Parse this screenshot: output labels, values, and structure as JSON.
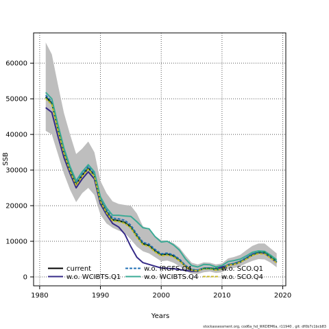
{
  "chart_data": {
    "type": "line",
    "xlabel": "Years",
    "ylabel": "SSB",
    "xlim": [
      1979,
      2020.5
    ],
    "ylim": [
      -2500,
      68500
    ],
    "xticks": [
      1980,
      1990,
      2000,
      2010,
      2020
    ],
    "yticks": [
      0,
      10000,
      20000,
      30000,
      40000,
      50000,
      60000
    ],
    "grid": true,
    "legend_position": "bottom-left",
    "x": [
      1981,
      1982,
      1983,
      1984,
      1985,
      1986,
      1987,
      1988,
      1989,
      1990,
      1991,
      1992,
      1993,
      1994,
      1995,
      1996,
      1997,
      1998,
      1999,
      2000,
      2001,
      2002,
      2003,
      2004,
      2005,
      2006,
      2007,
      2008,
      2009,
      2010,
      2011,
      2012,
      2013,
      2014,
      2015,
      2016,
      2017,
      2018,
      2019
    ],
    "confidence_band": {
      "color": "#bebebe",
      "upper": [
        65800,
        62500,
        54000,
        46000,
        40000,
        34500,
        36000,
        38000,
        35000,
        27000,
        23500,
        21200,
        20500,
        20200,
        20000,
        17800,
        14200,
        13500,
        11500,
        10300,
        10200,
        9500,
        8200,
        6000,
        4000,
        3500,
        4100,
        4000,
        3500,
        3800,
        5200,
        5600,
        6200,
        7500,
        8700,
        9400,
        9400,
        8000,
        6600
      ],
      "lower": [
        41000,
        40000,
        34500,
        29000,
        24500,
        21000,
        23500,
        25000,
        23000,
        17500,
        15000,
        13800,
        13000,
        12300,
        10500,
        8500,
        7200,
        6600,
        5500,
        4400,
        4600,
        4000,
        3000,
        1700,
        900,
        800,
        1300,
        1500,
        1100,
        1300,
        2300,
        2500,
        3000,
        3800,
        4500,
        5000,
        4900,
        4000,
        2700
      ]
    },
    "series": [
      {
        "name": "current",
        "color": "#000000",
        "dash": "solid",
        "values": [
          50500,
          48800,
          41500,
          35000,
          30000,
          26000,
          28500,
          30500,
          28500,
          21500,
          18300,
          16000,
          15800,
          15300,
          14000,
          11500,
          9300,
          8800,
          7300,
          6200,
          6400,
          5900,
          4700,
          3000,
          2000,
          1800,
          2400,
          2400,
          2000,
          2300,
          3400,
          3700,
          4300,
          5200,
          6200,
          6800,
          6700,
          5500,
          4100
        ]
      },
      {
        "name": "w.o. WCIBTS.Q1",
        "color": "#352a87",
        "dash": "solid",
        "values": [
          47500,
          46200,
          39500,
          33500,
          29000,
          25000,
          27500,
          29500,
          27500,
          20500,
          17500,
          15000,
          14000,
          12000,
          8500,
          5500,
          4000,
          3500,
          3000,
          2500,
          2400,
          2300,
          2100,
          1800,
          1600,
          1600,
          2400,
          2500,
          2300,
          2800,
          3300,
          3500,
          4100,
          5300,
          6400,
          6800,
          6600,
          5400,
          4000
        ]
      },
      {
        "name": "w.o. IRGFS.Q4",
        "color": "#1f6fb4",
        "dash": "dashed",
        "values": [
          51000,
          49200,
          42000,
          35500,
          30500,
          26500,
          29000,
          31000,
          29000,
          22000,
          18800,
          16500,
          16300,
          15900,
          14500,
          12000,
          9700,
          9200,
          7700,
          6500,
          6700,
          6200,
          5000,
          3200,
          2100,
          1900,
          2500,
          2500,
          2100,
          2400,
          3500,
          3800,
          4400,
          5400,
          6400,
          7000,
          6900,
          5600,
          4200
        ]
      },
      {
        "name": "w.o. WCIBTS.Q4",
        "color": "#3aaa95",
        "dash": "solid",
        "values": [
          51800,
          50000,
          42800,
          36200,
          31000,
          27000,
          29500,
          31500,
          29500,
          22500,
          19400,
          17300,
          17300,
          17100,
          17000,
          15500,
          13800,
          13500,
          11300,
          9800,
          10000,
          9000,
          7500,
          5000,
          3200,
          2800,
          3500,
          3400,
          2800,
          3200,
          4300,
          4600,
          5000,
          5900,
          6900,
          7300,
          7200,
          6100,
          4800
        ]
      },
      {
        "name": "w.o. SCO.Q1",
        "color": "#137e3e",
        "dash": "dashed",
        "values": [
          50300,
          48700,
          41400,
          34900,
          29900,
          25900,
          28400,
          30400,
          28400,
          21300,
          18200,
          15900,
          15700,
          15200,
          13900,
          11400,
          9200,
          8700,
          7200,
          6100,
          6300,
          5800,
          4600,
          2900,
          1900,
          1700,
          2300,
          2300,
          1900,
          2200,
          3300,
          3600,
          4200,
          5100,
          6100,
          6900,
          6900,
          5700,
          4400
        ]
      },
      {
        "name": "w.o. SCO.Q4",
        "color": "#c8b92c",
        "dash": "dashed",
        "values": [
          50000,
          48400,
          41200,
          34700,
          29700,
          25700,
          28200,
          30200,
          28200,
          21200,
          18000,
          15700,
          15500,
          15000,
          13700,
          11200,
          9000,
          8500,
          7000,
          5900,
          6100,
          5600,
          4500,
          2900,
          1900,
          1700,
          2300,
          2300,
          1900,
          2200,
          3300,
          3500,
          4100,
          5000,
          6000,
          6500,
          6400,
          5300,
          3900
        ]
      }
    ],
    "legend_rows": [
      [
        "current",
        "w.o. IRGFS.Q4",
        "w.o. SCO.Q1"
      ],
      [
        "w.o. WCIBTS.Q1",
        "w.o. WCIBTS.Q4",
        "w.o. SCO.Q4"
      ]
    ]
  },
  "footer_text": "stockassessment.org,  cod6a_hd_WKDEM6a,  r11940 ,  git:  df0b7c1bcb83"
}
